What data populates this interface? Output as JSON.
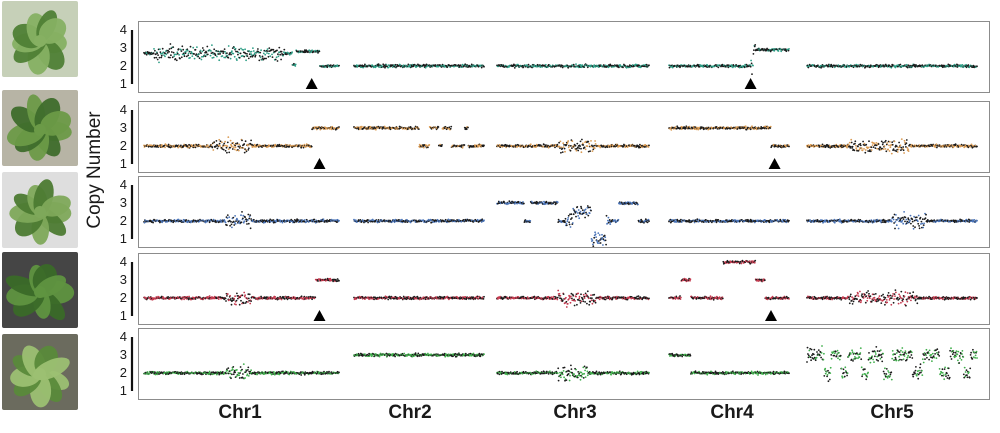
{
  "chart_data": {
    "type": "scatter",
    "ylabel": "Copy Number",
    "y_ticks": [
      "1",
      "2",
      "3",
      "4"
    ],
    "ylim": [
      1,
      4
    ],
    "chromosomes": [
      "Chr1",
      "Chr2",
      "Chr3",
      "Chr4",
      "Chr5"
    ],
    "rows": [
      {
        "name": "plant-1",
        "color": "#2e9e86",
        "photo_palette": [
          "#4f7f35",
          "#86b062",
          "#c6d0b8"
        ],
        "segments": [
          [
            [
              0,
              0.76,
              2.7
            ],
            [
              0.76,
              0.78,
              2.05
            ],
            [
              0.78,
              0.9,
              2.8
            ],
            [
              0.9,
              1.0,
              2.0
            ]
          ],
          [
            [
              0,
              1.0,
              2.0
            ]
          ],
          [
            [
              0,
              1.0,
              2.0
            ]
          ],
          [
            [
              0,
              0.7,
              2.0
            ],
            [
              0.7,
              1.0,
              2.9
            ]
          ],
          [
            [
              0,
              1.0,
              2.0
            ]
          ]
        ],
        "noisy_regions": [
          [
            0,
            0.05,
            0.72
          ],
          [
            3,
            0.68,
            0.72
          ]
        ],
        "arrows": [
          [
            0,
            0.86
          ],
          [
            3,
            0.68
          ]
        ]
      },
      {
        "name": "plant-2",
        "color": "#d99a52",
        "photo_palette": [
          "#3e6d2b",
          "#6b9a47",
          "#b7b4a5"
        ],
        "segments": [
          [
            [
              0,
              0.86,
              2.0
            ],
            [
              0.86,
              1.0,
              3.0
            ]
          ],
          [
            [
              0,
              0.5,
              3.0
            ],
            [
              0.5,
              0.58,
              2.0
            ],
            [
              0.58,
              0.65,
              3.0
            ],
            [
              0.65,
              0.68,
              2.0
            ],
            [
              0.68,
              0.75,
              3.0
            ],
            [
              0.75,
              0.85,
              2.0
            ],
            [
              0.85,
              0.88,
              3.0
            ],
            [
              0.88,
              1.0,
              2.0
            ]
          ],
          [
            [
              0,
              1.0,
              2.0
            ]
          ],
          [
            [
              0,
              0.85,
              3.0
            ],
            [
              0.85,
              1.0,
              2.0
            ]
          ],
          [
            [
              0,
              1.0,
              2.0
            ]
          ]
        ],
        "noisy_regions": [
          [
            0,
            0.35,
            0.55
          ],
          [
            2,
            0.4,
            0.65
          ],
          [
            4,
            0.25,
            0.6
          ]
        ],
        "arrows": [
          [
            0,
            0.9
          ],
          [
            3,
            0.88
          ]
        ]
      },
      {
        "name": "plant-3",
        "color": "#4a74b8",
        "photo_palette": [
          "#4c7a31",
          "#7ea85a",
          "#dedede"
        ],
        "segments": [
          [
            [
              0,
              1.0,
              2.0
            ]
          ],
          [
            [
              0,
              1.0,
              2.0
            ]
          ],
          [
            [
              0,
              0.18,
              3.0
            ],
            [
              0.18,
              0.22,
              2.0
            ],
            [
              0.22,
              0.4,
              3.0
            ],
            [
              0.4,
              0.5,
              2.0
            ],
            [
              0.5,
              0.62,
              2.5
            ],
            [
              0.62,
              0.72,
              1.0
            ],
            [
              0.72,
              0.8,
              2.0
            ],
            [
              0.8,
              0.93,
              3.0
            ],
            [
              0.93,
              1.0,
              2.0
            ]
          ],
          [
            [
              0,
              1.0,
              2.0
            ]
          ],
          [
            [
              0,
              1.0,
              2.0
            ]
          ]
        ],
        "noisy_regions": [
          [
            0,
            0.42,
            0.55
          ],
          [
            2,
            0.45,
            0.75
          ],
          [
            4,
            0.5,
            0.7
          ]
        ],
        "arrows": []
      },
      {
        "name": "plant-4",
        "color": "#c43a4f",
        "photo_palette": [
          "#3a6a28",
          "#5f9440",
          "#454545"
        ],
        "segments": [
          [
            [
              0,
              0.88,
              2.0
            ],
            [
              0.88,
              1.0,
              3.0
            ]
          ],
          [
            [
              0,
              1.0,
              2.0
            ]
          ],
          [
            [
              0,
              1.0,
              2.0
            ]
          ],
          [
            [
              0,
              0.1,
              2.0
            ],
            [
              0.1,
              0.18,
              3.0
            ],
            [
              0.18,
              0.45,
              2.0
            ],
            [
              0.45,
              0.72,
              4.0
            ],
            [
              0.72,
              0.8,
              3.0
            ],
            [
              0.8,
              0.88,
              2.0
            ],
            [
              0.88,
              1.0,
              2.0
            ]
          ],
          [
            [
              0,
              1.0,
              2.0
            ]
          ]
        ],
        "noisy_regions": [
          [
            0,
            0.42,
            0.55
          ],
          [
            2,
            0.4,
            0.65
          ],
          [
            4,
            0.25,
            0.65
          ]
        ],
        "arrows": [
          [
            0,
            0.9
          ],
          [
            3,
            0.85
          ]
        ]
      },
      {
        "name": "plant-5",
        "color": "#3fae4b",
        "photo_palette": [
          "#5a8a3a",
          "#9cc072",
          "#6b6b5e"
        ],
        "segments": [
          [
            [
              0,
              1.0,
              2.0
            ]
          ],
          [
            [
              0,
              1.0,
              3.0
            ]
          ],
          [
            [
              0,
              1.0,
              2.0
            ]
          ],
          [
            [
              0,
              0.18,
              3.0
            ],
            [
              0.18,
              1.0,
              2.0
            ]
          ],
          [
            [
              0,
              0.1,
              3.0
            ],
            [
              0.1,
              0.14,
              2.0
            ],
            [
              0.14,
              0.2,
              3.0
            ],
            [
              0.2,
              0.24,
              2.0
            ],
            [
              0.24,
              0.32,
              3.0
            ],
            [
              0.32,
              0.36,
              2.0
            ],
            [
              0.36,
              0.45,
              3.0
            ],
            [
              0.45,
              0.5,
              2.0
            ],
            [
              0.5,
              0.62,
              3.0
            ],
            [
              0.62,
              0.68,
              2.0
            ],
            [
              0.68,
              0.78,
              3.0
            ],
            [
              0.78,
              0.84,
              2.0
            ],
            [
              0.84,
              0.92,
              3.0
            ],
            [
              0.92,
              0.96,
              2.0
            ],
            [
              0.96,
              1.0,
              3.0
            ]
          ]
        ],
        "noisy_regions": [
          [
            0,
            0.42,
            0.55
          ],
          [
            2,
            0.4,
            0.6
          ],
          [
            4,
            0.0,
            1.0
          ]
        ],
        "arrows": []
      }
    ]
  }
}
